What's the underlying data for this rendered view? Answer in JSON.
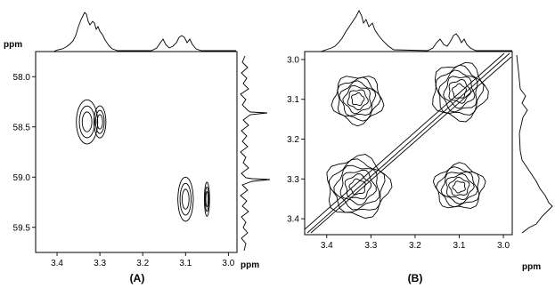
{
  "chart_data": [
    {
      "type": "contour",
      "panel_label": "(A)",
      "x_unit": "ppm",
      "y_unit": "ppm",
      "xlim": [
        3.45,
        2.98
      ],
      "ylim": [
        57.75,
        59.75
      ],
      "x_ticks": [
        "3.4",
        "3.3",
        "3.2",
        "3.1",
        "3.0"
      ],
      "y_ticks": [
        "58.0",
        "58.5",
        "59.0",
        "59.5"
      ],
      "peaks": [
        {
          "x": 3.33,
          "y": 58.45,
          "rx": 0.025,
          "ry": 0.22
        },
        {
          "x": 3.3,
          "y": 58.45,
          "rx": 0.014,
          "ry": 0.16
        },
        {
          "x": 3.1,
          "y": 59.22,
          "rx": 0.018,
          "ry": 0.22
        },
        {
          "x": 3.05,
          "y": 59.22,
          "rx": 0.006,
          "ry": 0.17
        }
      ]
    },
    {
      "type": "contour",
      "panel_label": "(B)",
      "x_unit": "ppm",
      "y_unit": "",
      "xlim": [
        3.45,
        2.98
      ],
      "ylim": [
        2.98,
        3.44
      ],
      "x_ticks": [
        "3.4",
        "3.3",
        "3.2",
        "3.1",
        "3.0"
      ],
      "y_ticks": [
        "3.0",
        "3.1",
        "3.2",
        "3.3",
        "3.4"
      ],
      "peaks": [
        {
          "x": 3.33,
          "y": 3.1,
          "rx": 0.055,
          "ry": 0.06
        },
        {
          "x": 3.1,
          "y": 3.08,
          "rx": 0.06,
          "ry": 0.07
        },
        {
          "x": 3.33,
          "y": 3.32,
          "rx": 0.07,
          "ry": 0.075
        },
        {
          "x": 3.1,
          "y": 3.32,
          "rx": 0.055,
          "ry": 0.055
        }
      ]
    }
  ]
}
